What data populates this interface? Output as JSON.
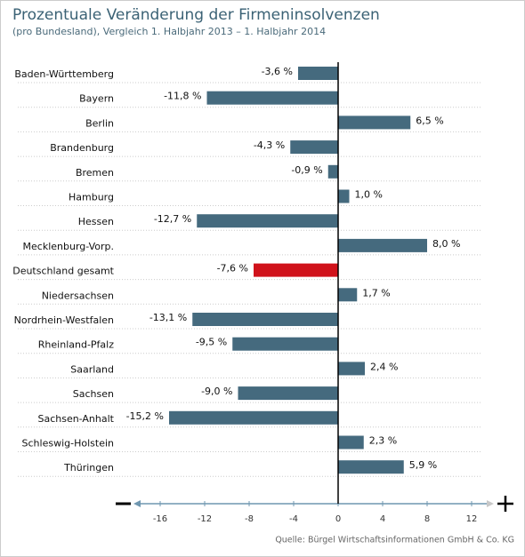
{
  "chart_data": {
    "type": "hbar",
    "title": "Prozentuale Veränderung der Firmeninsolvenzen",
    "subtitle": "(pro Bundesland), Vergleich 1. Halbjahr 2013 – 1. Halbjahr 2014",
    "source": "Quelle: Bürgel Wirtschaftsinformationen GmbH & Co. KG",
    "categories": [
      "Baden-Württemberg",
      "Bayern",
      "Berlin",
      "Brandenburg",
      "Bremen",
      "Hamburg",
      "Hessen",
      "Mecklenburg-Vorp.",
      "Deutschland gesamt",
      "Niedersachsen",
      "Nordrhein-Westfalen",
      "Rheinland-Pfalz",
      "Saarland",
      "Sachsen",
      "Sachsen-Anhalt",
      "Schleswig-Holstein",
      "Thüringen"
    ],
    "values": [
      -3.6,
      -11.8,
      6.5,
      -4.3,
      -0.9,
      1.0,
      -12.7,
      8.0,
      -7.6,
      1.7,
      -13.1,
      -9.5,
      2.4,
      -9.0,
      -15.2,
      2.3,
      5.9
    ],
    "value_labels": [
      "-3,6 %",
      "-11,8 %",
      "6,5 %",
      "-4,3 %",
      "-0,9 %",
      "1,0 %",
      "-12,7 %",
      "8,0 %",
      "-7,6 %",
      "1,7 %",
      "-13,1 %",
      "-9,5 %",
      "2,4 %",
      "-9,0 %",
      "-15,2 %",
      "2,3 %",
      "5,9 %"
    ],
    "colors": [
      "#456a7e",
      "#456a7e",
      "#456a7e",
      "#456a7e",
      "#456a7e",
      "#456a7e",
      "#456a7e",
      "#456a7e",
      "#d0121b",
      "#456a7e",
      "#456a7e",
      "#456a7e",
      "#456a7e",
      "#456a7e",
      "#456a7e",
      "#456a7e",
      "#456a7e"
    ],
    "xlim": [
      -18.4,
      14
    ],
    "xticks": [
      -16,
      -12,
      -8,
      -4,
      0,
      4,
      8,
      12
    ]
  }
}
